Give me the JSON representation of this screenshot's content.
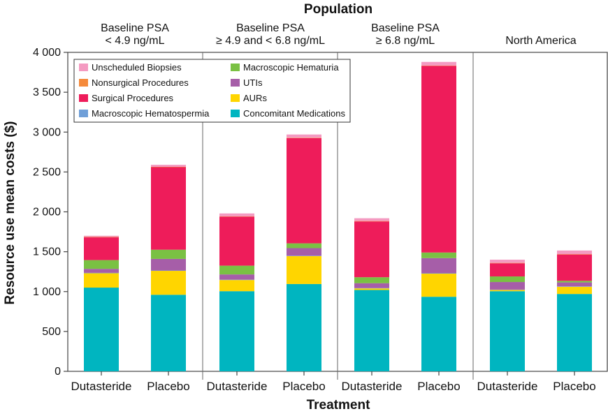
{
  "chart_data": {
    "type": "bar",
    "stacked": true,
    "title": "Population",
    "xlabel": "Treatment",
    "ylabel": "Resource use mean costs ($)",
    "ylim": [
      0,
      4000
    ],
    "yticks": [
      0,
      500,
      1000,
      1500,
      2000,
      2500,
      3000,
      3500,
      4000
    ],
    "ytick_labels": [
      "0",
      "500",
      "1 000",
      "1 500",
      "2 000",
      "2 500",
      "3 000",
      "3 500",
      "4 000"
    ],
    "grid": false,
    "legend_position": "top-left",
    "groups": [
      {
        "label": [
          "Baseline PSA",
          "< 4.9 ng/mL"
        ],
        "categories": [
          "Dutasteride",
          "Placebo"
        ]
      },
      {
        "label": [
          "Baseline PSA",
          "≥ 4.9  and < 6.8 ng/mL"
        ],
        "categories": [
          "Dutasteride",
          "Placebo"
        ]
      },
      {
        "label": [
          "Baseline PSA",
          "≥ 6.8 ng/mL"
        ],
        "categories": [
          "Dutasteride",
          "Placebo"
        ]
      },
      {
        "label": [
          "North America"
        ],
        "categories": [
          "Dutasteride",
          "Placebo"
        ]
      }
    ],
    "series": [
      {
        "name": "Concomitant Medications",
        "color": "#00b5c0",
        "values": [
          1050,
          960,
          1005,
          1095,
          1020,
          935,
          1005,
          970
        ]
      },
      {
        "name": "AURs",
        "color": "#ffd500",
        "values": [
          180,
          300,
          140,
          350,
          20,
          290,
          15,
          90
        ]
      },
      {
        "name": "Macroscopic Hematospermia",
        "color": "#6f9fd8",
        "values": [
          5,
          5,
          5,
          5,
          5,
          5,
          5,
          5
        ]
      },
      {
        "name": "UTIs",
        "color": "#a65ea8",
        "values": [
          50,
          145,
          65,
          95,
          60,
          190,
          95,
          50
        ]
      },
      {
        "name": "Macroscopic Hematuria",
        "color": "#7ac143",
        "values": [
          110,
          115,
          110,
          60,
          75,
          70,
          70,
          20
        ]
      },
      {
        "name": "Surgical Procedures",
        "color": "#ee1c5a",
        "values": [
          285,
          1035,
          615,
          1320,
          700,
          2340,
          165,
          330
        ]
      },
      {
        "name": "Nonsurgical Procedures",
        "color": "#f58a3b",
        "values": [
          5,
          5,
          5,
          5,
          5,
          5,
          5,
          5
        ]
      },
      {
        "name": "Unscheduled Biopsies",
        "color": "#f49ac1",
        "values": [
          15,
          25,
          35,
          40,
          35,
          45,
          40,
          45
        ]
      }
    ],
    "legend_order": [
      "Unscheduled Biopsies",
      "Macroscopic Hematuria",
      "Nonsurgical Procedures",
      "UTIs",
      "Surgical Procedures",
      "AURs",
      "Macroscopic Hematospermia",
      "Concomitant Medications"
    ]
  }
}
